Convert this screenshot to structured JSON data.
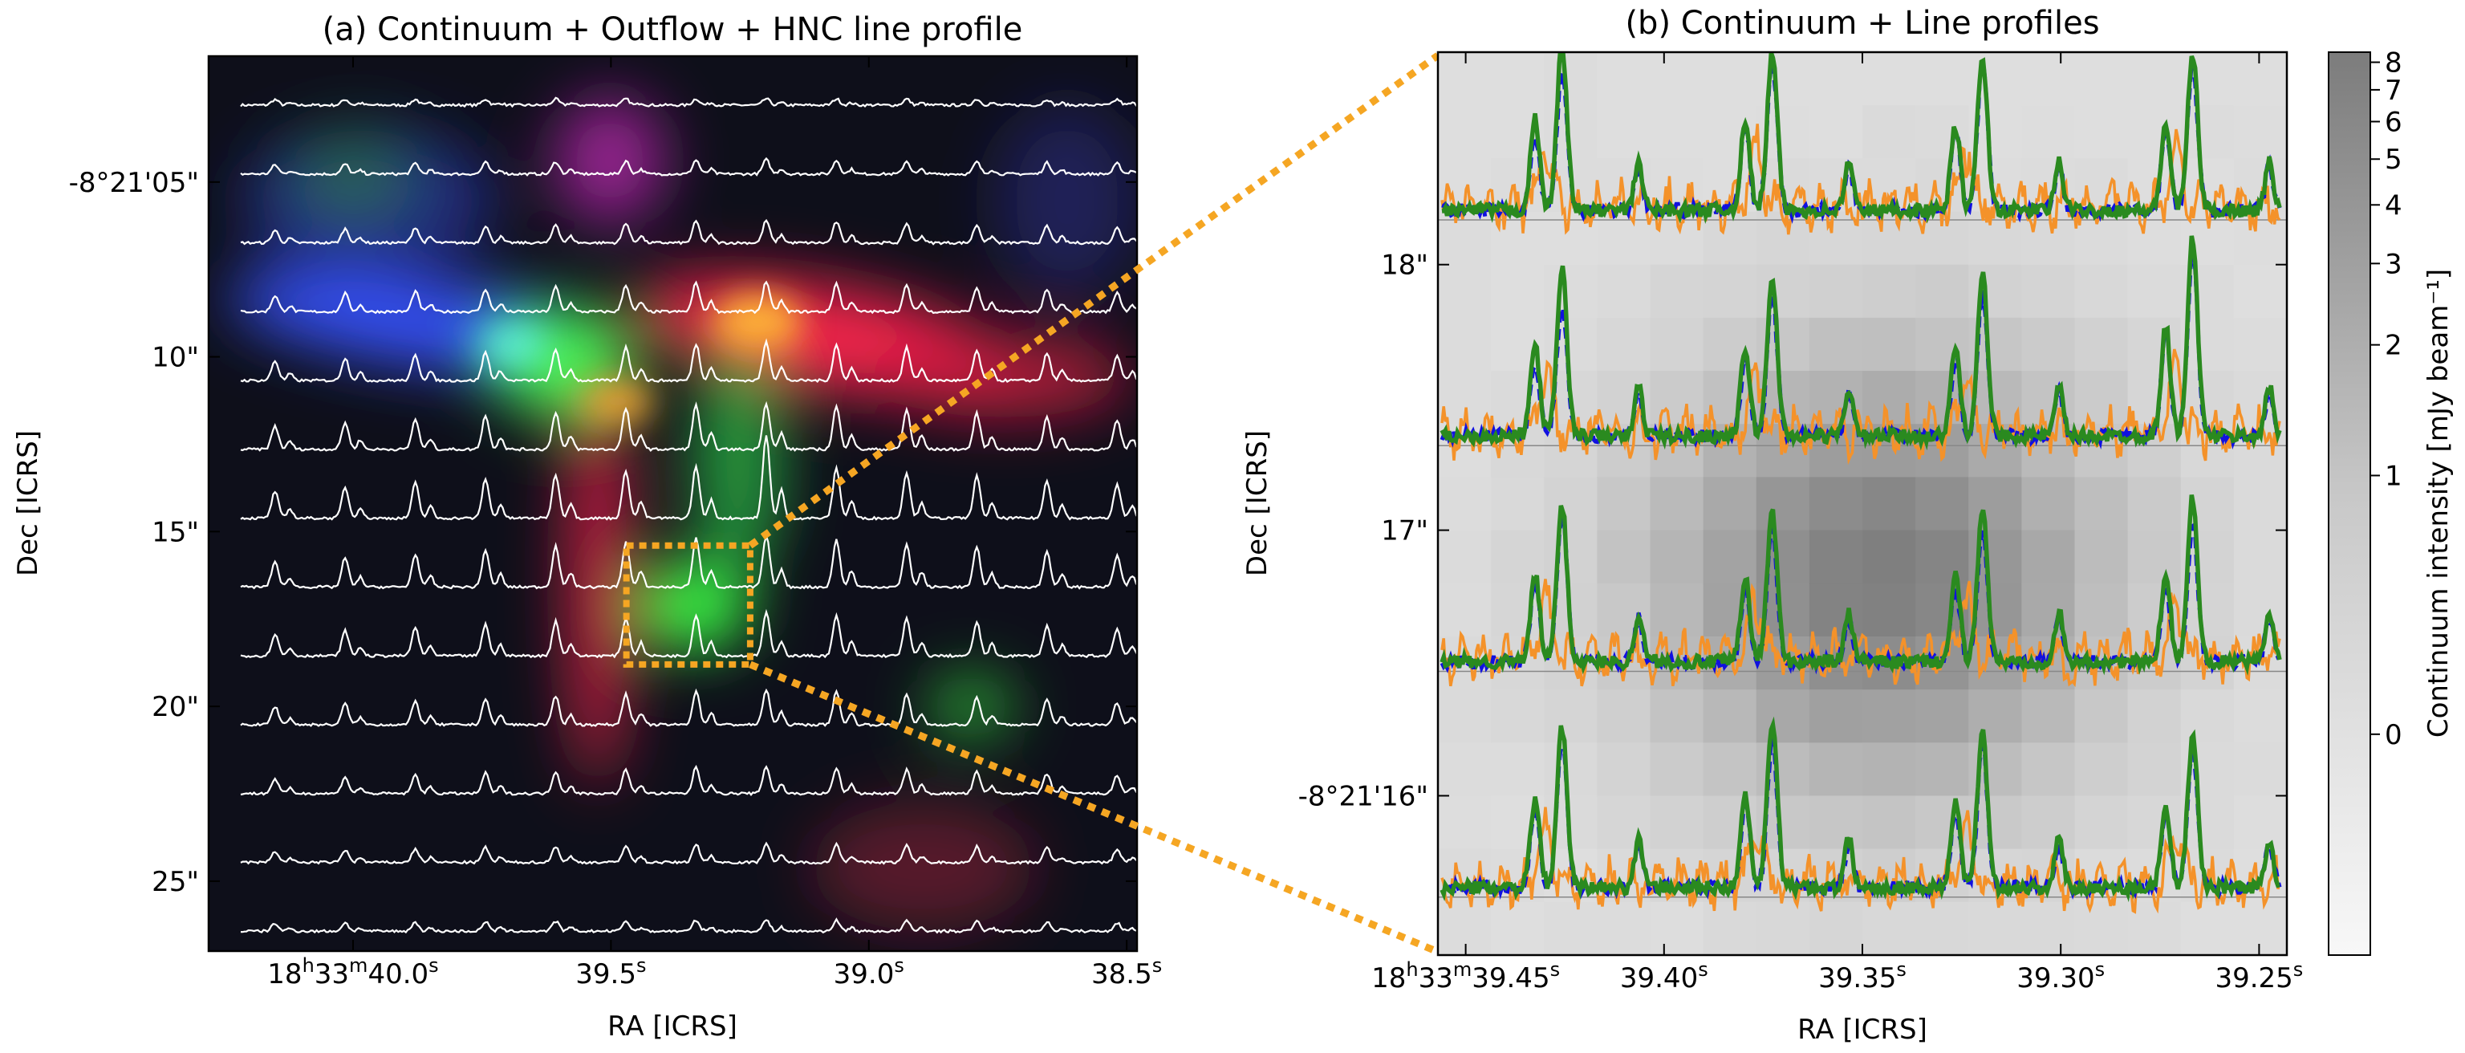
{
  "chart_data": [
    {
      "type": "image",
      "title": "(a) Continuum + Outflow + HNC line profile",
      "xlabel": "RA [ICRS]",
      "ylabel": "Dec [ICRS]",
      "x_ticks": [
        {
          "label": "18h33m40.0s",
          "value": 40.0
        },
        {
          "label": "39.5s",
          "value": 39.5
        },
        {
          "label": "39.0s",
          "value": 39.0
        },
        {
          "label": "38.5s",
          "value": 38.5
        }
      ],
      "y_ticks": [
        {
          "label": "-8°21'05\"",
          "value": 5
        },
        {
          "label": "10\"",
          "value": 10
        },
        {
          "label": "15\"",
          "value": 15
        },
        {
          "label": "20\"",
          "value": 20
        },
        {
          "label": "25\"",
          "value": 25
        }
      ],
      "xlim": [
        40.28,
        38.48
      ],
      "ylim": [
        27.0,
        1.4
      ],
      "spectra_rows": 13,
      "spectra_cols": 13,
      "spectrum_color": "#ffffff",
      "rgb_colors": {
        "red": "#ff1e3c",
        "green": "#28ff28",
        "blue": "#3050ff"
      },
      "zoom_box": {
        "ra": [
          39.47,
          39.23
        ],
        "dec": [
          15.4,
          18.8
        ]
      },
      "zoom_color": "#f5a623"
    },
    {
      "type": "image",
      "title": "(b) Continuum + Line profiles",
      "xlabel": "RA [ICRS]",
      "ylabel": "Dec [ICRS]",
      "x_ticks": [
        {
          "label": "18h33m39.45s",
          "value": 39.45
        },
        {
          "label": "39.40s",
          "value": 39.4
        },
        {
          "label": "39.35s",
          "value": 39.35
        },
        {
          "label": "39.30s",
          "value": 39.3
        },
        {
          "label": "39.25s",
          "value": 39.25
        }
      ],
      "y_ticks": [
        {
          "label": "-8°21'16\"",
          "value": 16
        },
        {
          "label": "17\"",
          "value": 17
        },
        {
          "label": "18\"",
          "value": 18
        }
      ],
      "xlim": [
        39.457,
        39.243
      ],
      "ylim": [
        15.4,
        18.8
      ],
      "spectra_rows": 4,
      "spectra_cols": 4,
      "series_colors": {
        "solid_green": "#2a8a1f",
        "dashed_blue": "#1010e0",
        "orange": "#f4922a"
      },
      "colorbar": {
        "label": "Continuum intensity [mJy beam⁻¹]",
        "ticks": [
          {
            "label": "0",
            "value": 0
          },
          {
            "label": "1",
            "value": 1
          },
          {
            "label": "2",
            "value": 2
          },
          {
            "label": "3",
            "value": 3
          },
          {
            "label": "4",
            "value": 4
          },
          {
            "label": "5",
            "value": 5
          },
          {
            "label": "6",
            "value": 6
          },
          {
            "label": "7",
            "value": 7
          },
          {
            "label": "8",
            "value": 8
          }
        ],
        "range": [
          -0.8,
          8.4
        ]
      }
    }
  ]
}
